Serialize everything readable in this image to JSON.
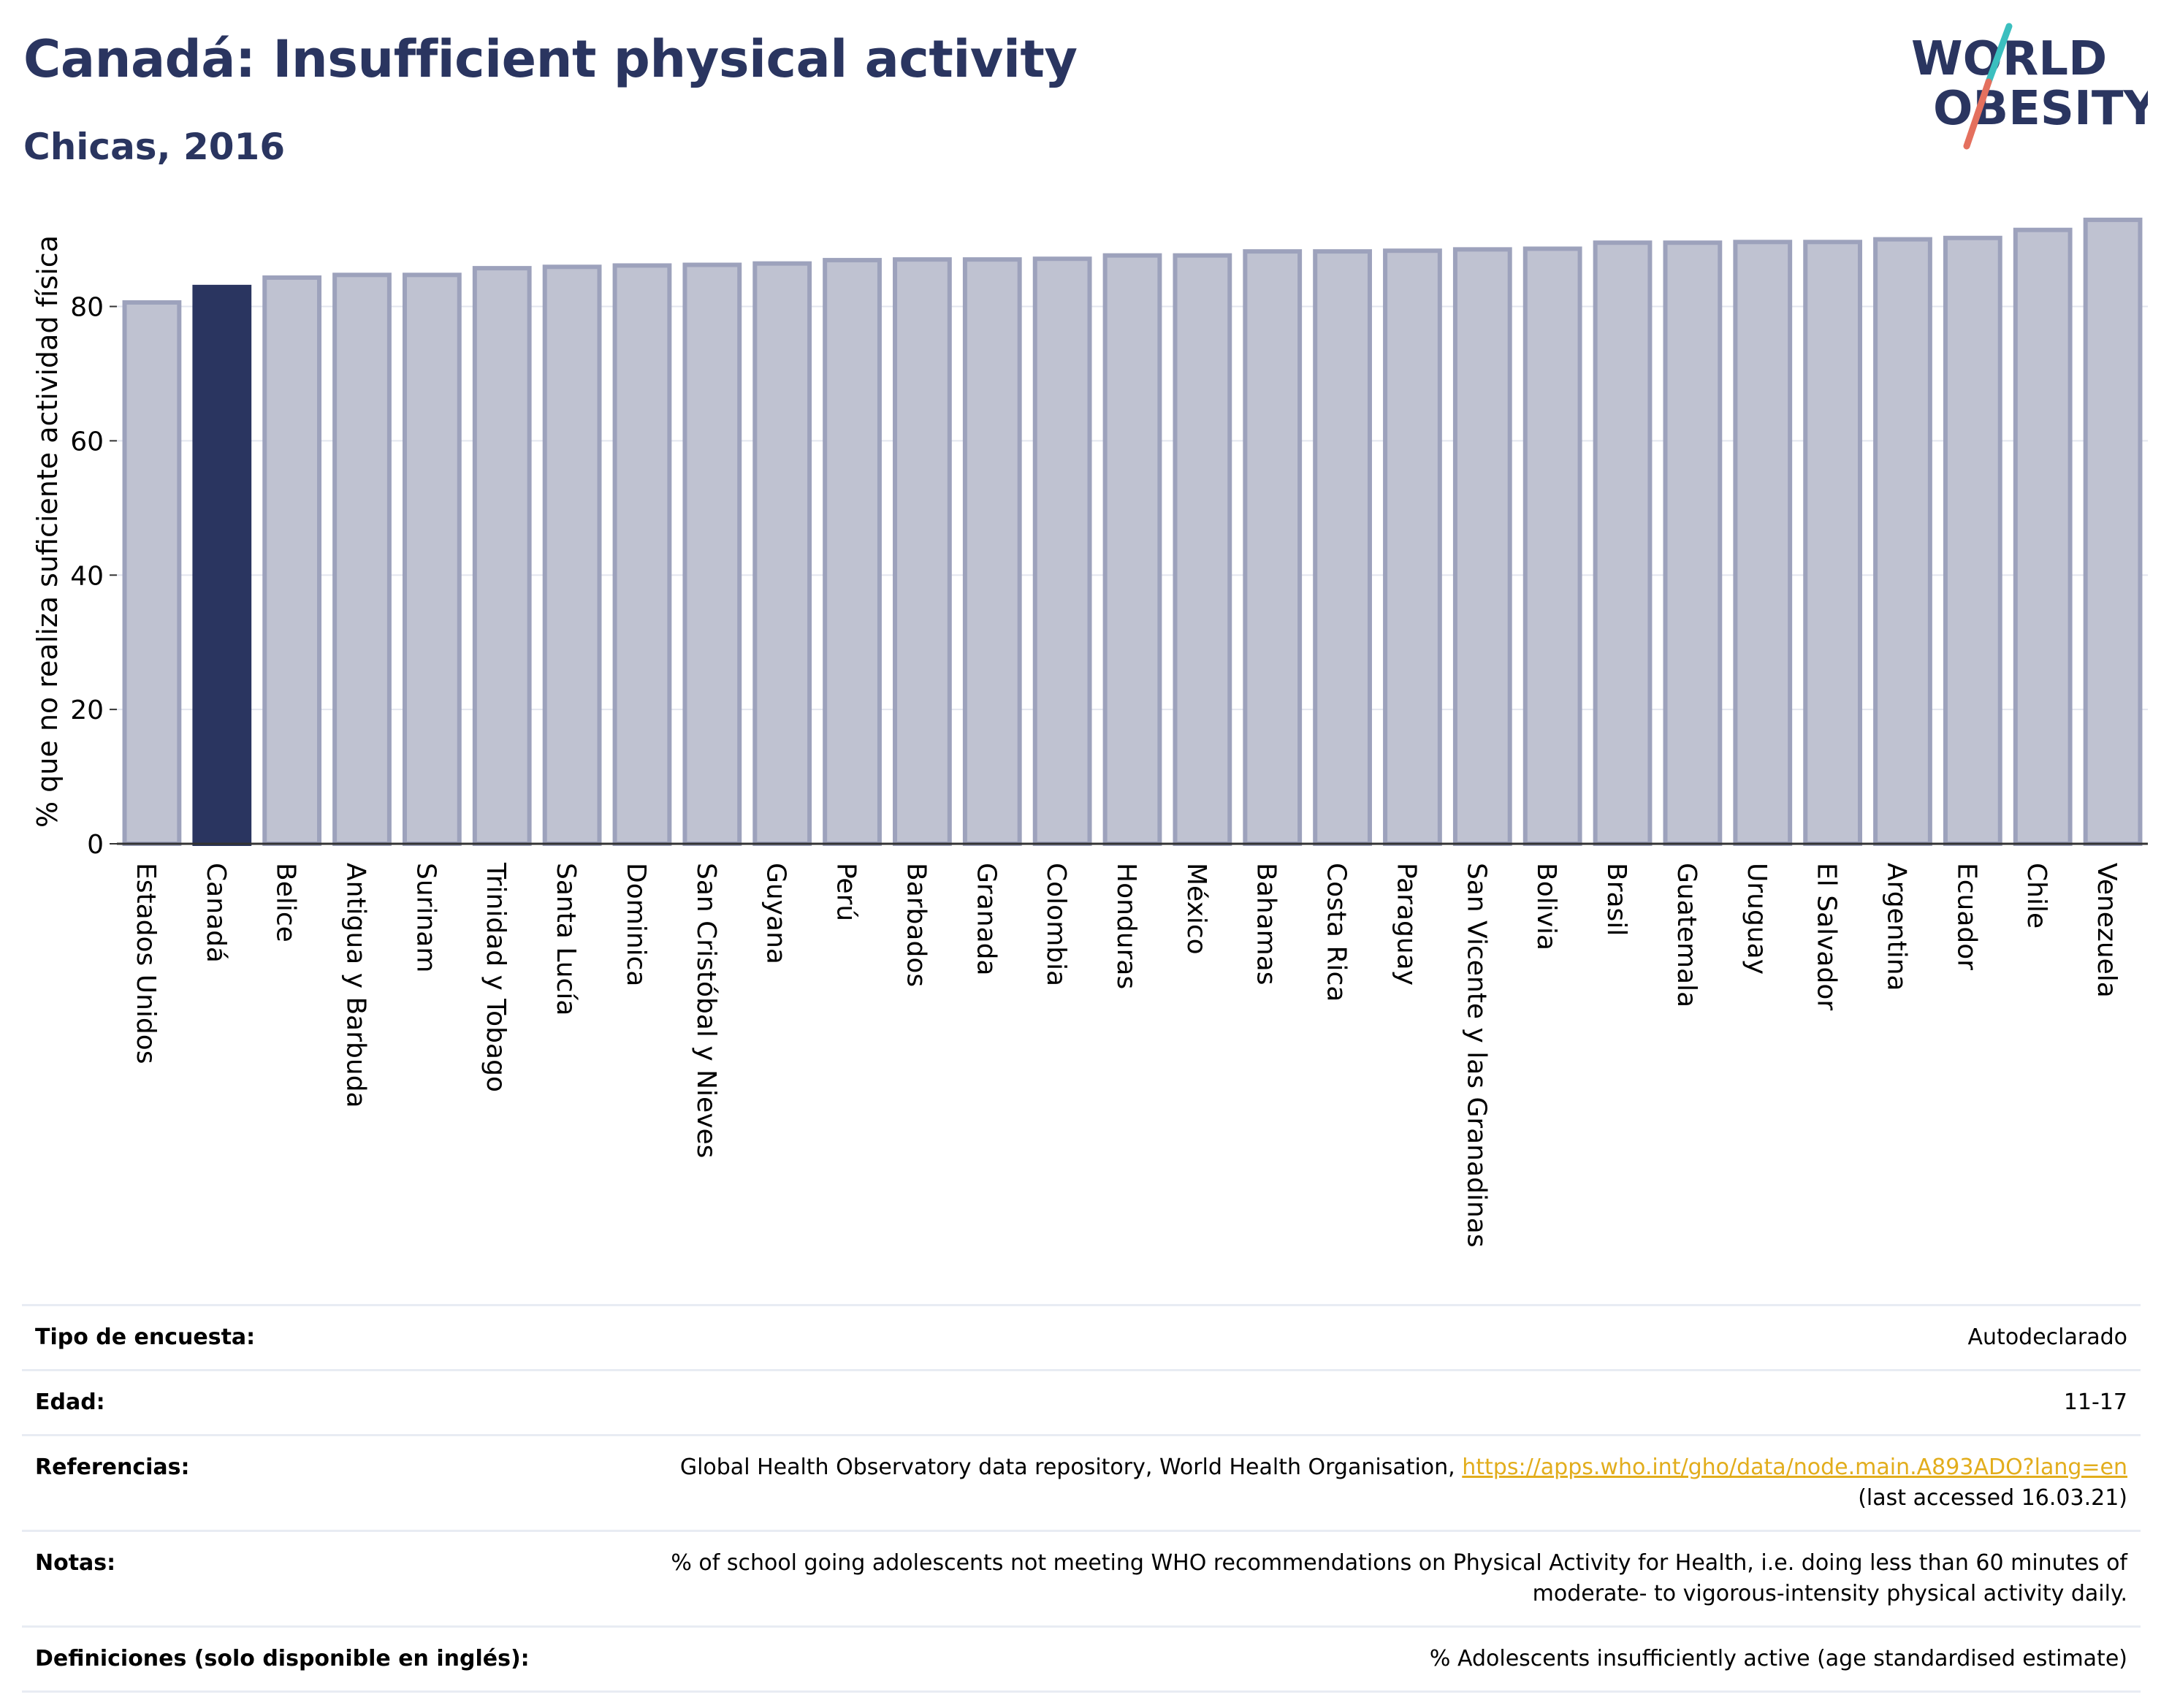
{
  "header": {
    "title": "Canadá: Insufficient physical activity",
    "subtitle": "Chicas, 2016"
  },
  "logo": {
    "line1": "WORLD",
    "line2": "OBESITY",
    "text_color": "#2a3560",
    "slash_top_color": "#3bbfbf",
    "slash_bottom_color": "#e4705e"
  },
  "chart_data": {
    "type": "bar",
    "ylabel": "% que no realiza suficiente actividad física",
    "xlabel": "",
    "ylim": [
      0,
      93
    ],
    "yticks": [
      0,
      20,
      40,
      60,
      80
    ],
    "grid": true,
    "highlight": "Canadá",
    "colors": {
      "bar": "#bfc2d1",
      "bar_edge": "#9da2bc",
      "highlight": "#2a3560"
    },
    "categories": [
      "Estados Unidos",
      "Canadá",
      "Belice",
      "Antigua y Barbuda",
      "Surinam",
      "Trinidad y Tobago",
      "Santa Lucía",
      "Dominica",
      "San Cristóbal y Nieves",
      "Guyana",
      "Perú",
      "Barbados",
      "Granada",
      "Colombia",
      "Honduras",
      "México",
      "Bahamas",
      "Costa Rica",
      "Paraguay",
      "San Vicente y las Granadinas",
      "Bolivia",
      "Brasil",
      "Guatemala",
      "Uruguay",
      "El Salvador",
      "Argentina",
      "Ecuador",
      "Chile",
      "Venezuela"
    ],
    "values": [
      80.6,
      82.9,
      84.3,
      84.7,
      84.7,
      85.7,
      85.9,
      86.1,
      86.2,
      86.4,
      86.9,
      87.0,
      87.0,
      87.1,
      87.6,
      87.6,
      88.2,
      88.2,
      88.3,
      88.5,
      88.6,
      89.5,
      89.5,
      89.6,
      89.6,
      90.0,
      90.2,
      91.4,
      92.9
    ]
  },
  "info": {
    "rows": [
      {
        "key": "Tipo de encuesta:",
        "value": "Autodeclarado"
      },
      {
        "key": "Edad:",
        "value": "11-17"
      },
      {
        "key": "Referencias:",
        "value": "Global Health Observatory data repository, World Health Organisation,",
        "link": "https://apps.who.int/gho/data/node.main.A893ADO?lang=en",
        "value2": "(last accessed 16.03.21)"
      },
      {
        "key": "Notas:",
        "value": "% of school going adolescents not meeting WHO recommendations on Physical Activity for Health, i.e. doing less than 60 minutes of",
        "value2": "moderate- to vigorous-intensity physical activity daily."
      },
      {
        "key": "Definiciones (solo disponible en inglés):",
        "value": "% Adolescents insufficiently active (age standardised estimate)"
      }
    ]
  }
}
